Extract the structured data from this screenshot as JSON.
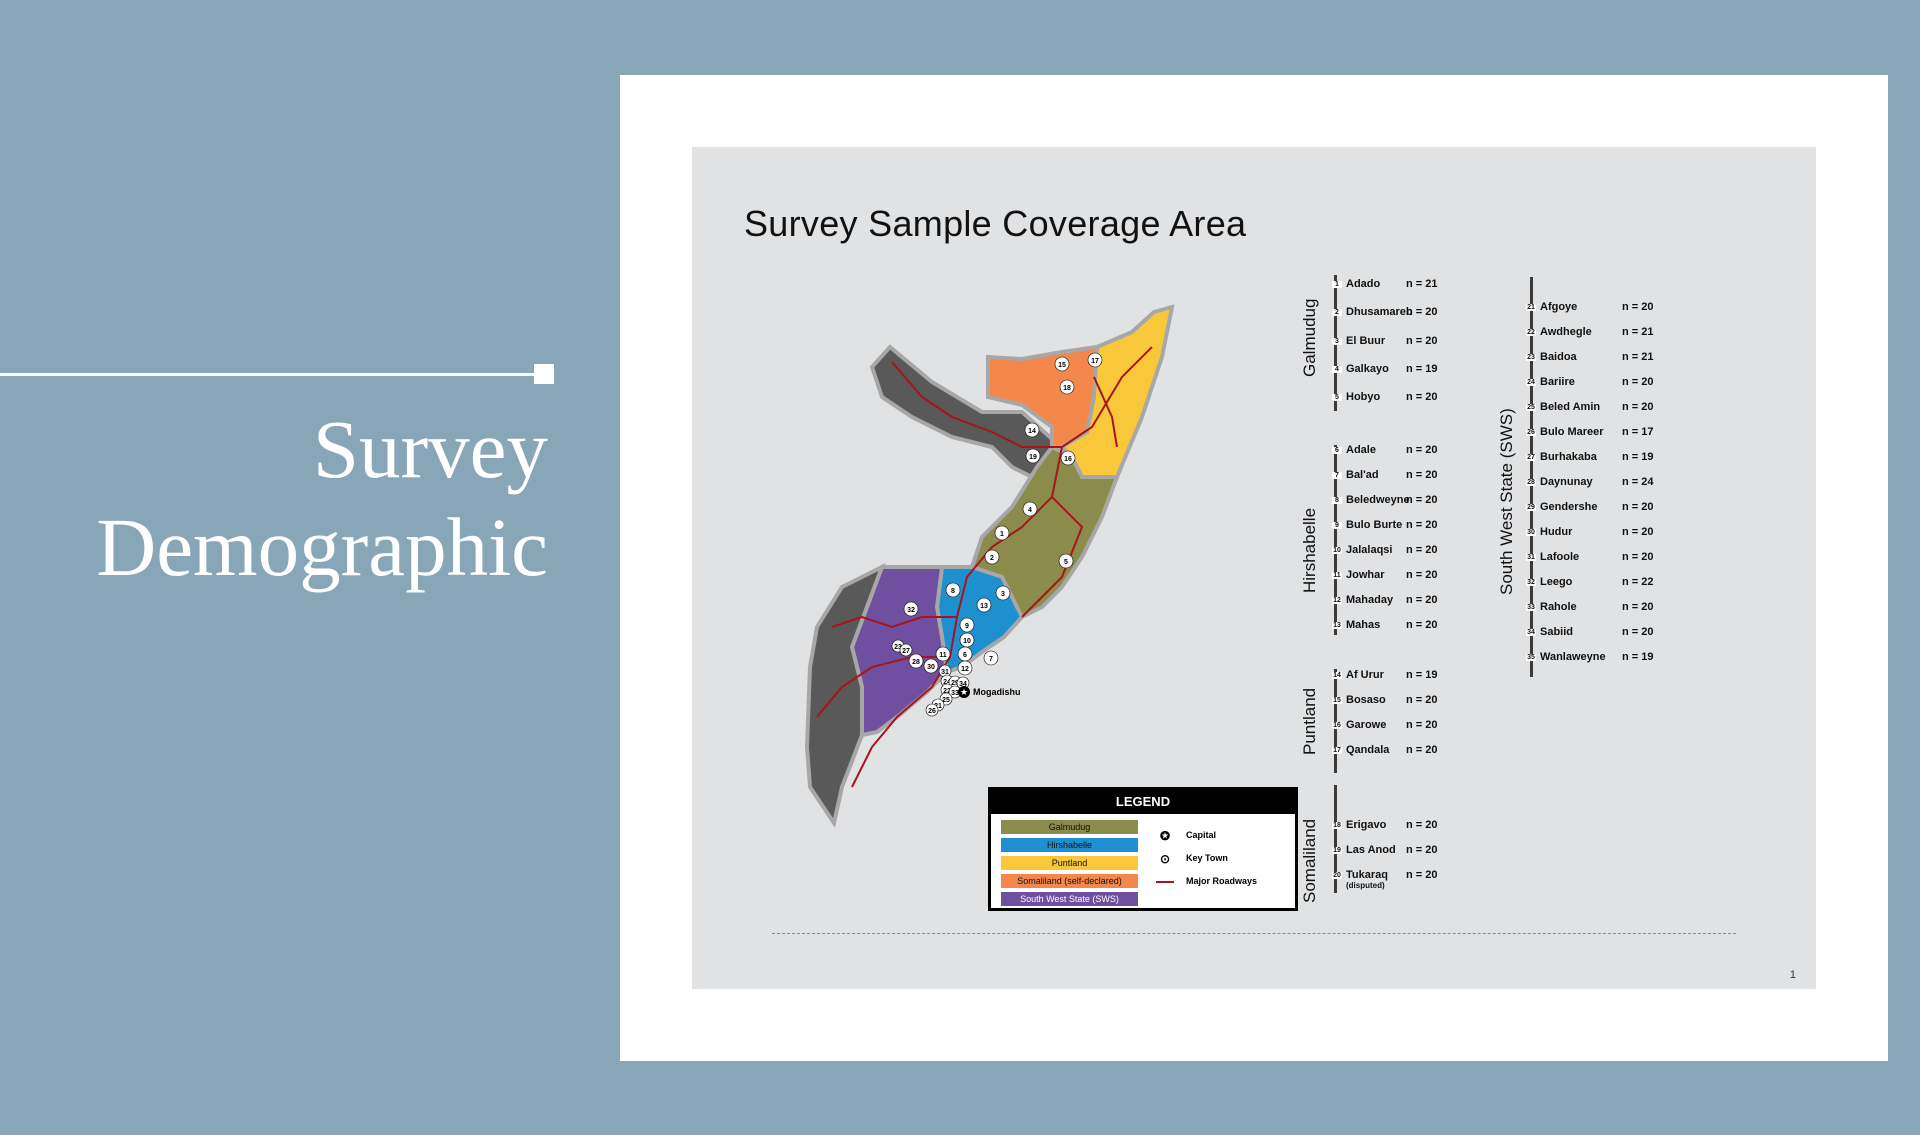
{
  "slide": {
    "heading_line1": "Survey",
    "heading_line2": "Demographic",
    "background_color": "#87a7b9"
  },
  "document": {
    "title": "Survey Sample Coverage Area",
    "page_number": "1"
  },
  "map": {
    "capital_label": "Mogadishu",
    "region_colors": {
      "Galmudug": "#8b8b4b",
      "Hirshabelle": "#1e90d0",
      "Puntland": "#f9c83a",
      "Somaliland": "#f4874b",
      "South West State": "#6f4fa0",
      "Other": "#595959",
      "Roads": "#a8141c"
    },
    "town_markers": [
      "1",
      "2",
      "3",
      "4",
      "5",
      "7",
      "8",
      "9",
      "10",
      "11",
      "6",
      "12",
      "13",
      "14",
      "15",
      "16",
      "17",
      "18",
      "19",
      "23",
      "27",
      "28",
      "30",
      "31",
      "24",
      "29",
      "34",
      "22",
      "33",
      "25",
      "21",
      "26",
      "32"
    ]
  },
  "legend": {
    "title": "LEGEND",
    "regions": [
      {
        "label": "Galmudug",
        "color": "#8b8b4b",
        "text_color": "#111"
      },
      {
        "label": "Hirshabelle",
        "color": "#1e90d0",
        "text_color": "#111"
      },
      {
        "label": "Puntland",
        "color": "#f9c83a",
        "text_color": "#111"
      },
      {
        "label": "Somaliland (self-declared)",
        "color": "#f4874b",
        "text_color": "#111"
      },
      {
        "label": "South West State (SWS)",
        "color": "#6f4fa0",
        "text_color": "#ffffff"
      }
    ],
    "symbols": [
      {
        "label": "Capital",
        "icon": "star-circle-icon"
      },
      {
        "label": "Key Town",
        "icon": "target-circle-icon"
      },
      {
        "label": "Major Roadways",
        "icon": "red-line-icon"
      }
    ]
  },
  "regions_list": [
    {
      "region": "Galmudug",
      "towns": [
        {
          "num": "1",
          "name": "Adado",
          "n": "n = 21"
        },
        {
          "num": "2",
          "name": "Dhusamareb",
          "n": "n = 20"
        },
        {
          "num": "3",
          "name": "El Buur",
          "n": "n = 20"
        },
        {
          "num": "4",
          "name": "Galkayo",
          "n": "n = 19"
        },
        {
          "num": "5",
          "name": "Hobyo",
          "n": "n = 20"
        }
      ]
    },
    {
      "region": "Hirshabelle",
      "towns": [
        {
          "num": "6",
          "name": "Adale",
          "n": "n = 20"
        },
        {
          "num": "7",
          "name": "Bal'ad",
          "n": "n = 20"
        },
        {
          "num": "8",
          "name": "Beledweyne",
          "n": "n = 20"
        },
        {
          "num": "9",
          "name": "Bulo Burte",
          "n": "n = 20"
        },
        {
          "num": "10",
          "name": "Jalalaqsi",
          "n": "n = 20"
        },
        {
          "num": "11",
          "name": "Jowhar",
          "n": "n = 20"
        },
        {
          "num": "12",
          "name": "Mahaday",
          "n": "n = 20"
        },
        {
          "num": "13",
          "name": "Mahas",
          "n": "n = 20"
        }
      ]
    },
    {
      "region": "Puntland",
      "towns": [
        {
          "num": "14",
          "name": "Af Urur",
          "n": "n = 19"
        },
        {
          "num": "15",
          "name": "Bosaso",
          "n": "n = 20"
        },
        {
          "num": "16",
          "name": "Garowe",
          "n": "n = 20"
        },
        {
          "num": "17",
          "name": "Qandala",
          "n": "n = 20"
        }
      ]
    },
    {
      "region": "Somaliland",
      "towns": [
        {
          "num": "18",
          "name": "Erigavo",
          "n": "n = 20"
        },
        {
          "num": "19",
          "name": "Las Anod",
          "n": "n = 20"
        },
        {
          "num": "20",
          "name": "Tukaraq",
          "note": "(disputed)",
          "n": "n = 20"
        }
      ]
    },
    {
      "region": "South West State (SWS)",
      "towns": [
        {
          "num": "21",
          "name": "Afgoye",
          "n": "n = 20"
        },
        {
          "num": "22",
          "name": "Awdhegle",
          "n": "n = 21"
        },
        {
          "num": "23",
          "name": "Baidoa",
          "n": "n = 21"
        },
        {
          "num": "24",
          "name": "Bariire",
          "n": "n = 20"
        },
        {
          "num": "25",
          "name": "Beled Amin",
          "n": "n = 20"
        },
        {
          "num": "26",
          "name": "Bulo Mareer",
          "n": "n = 17"
        },
        {
          "num": "27",
          "name": "Burhakaba",
          "n": "n = 19"
        },
        {
          "num": "28",
          "name": "Daynunay",
          "n": "n = 24"
        },
        {
          "num": "29",
          "name": "Gendershe",
          "n": "n = 20"
        },
        {
          "num": "30",
          "name": "Hudur",
          "n": "n = 20"
        },
        {
          "num": "31",
          "name": "Lafoole",
          "n": "n = 20"
        },
        {
          "num": "32",
          "name": "Leego",
          "n": "n = 22"
        },
        {
          "num": "33",
          "name": "Rahole",
          "n": "n = 20"
        },
        {
          "num": "34",
          "name": "Sabiid",
          "n": "n = 20"
        },
        {
          "num": "35",
          "name": "Wanlaweyne",
          "n": "n = 19"
        }
      ]
    }
  ]
}
